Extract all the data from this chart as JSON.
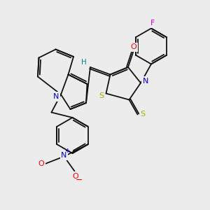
{
  "bg_color": "#ececec",
  "bond_color": "#111111",
  "bond_width": 1.3,
  "atom_colors": {
    "O": "#ff0000",
    "N": "#0000cc",
    "S": "#aaaa00",
    "F": "#cc00cc",
    "H": "#008888",
    "C": "#111111"
  },
  "figsize": [
    3.0,
    3.0
  ],
  "dpi": 100,
  "xlim": [
    0,
    10
  ],
  "ylim": [
    0,
    10
  ]
}
